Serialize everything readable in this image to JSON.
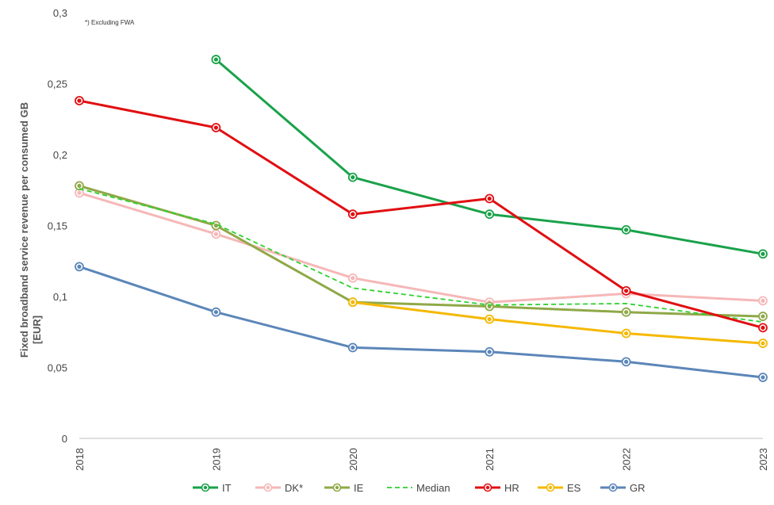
{
  "chart_data": {
    "type": "line",
    "note": "*) Excluding FWA",
    "ylabel_line1": "Fixed broadband service revenue per consumed GB",
    "ylabel_line2": "[EUR]",
    "x": [
      "2018",
      "2019",
      "2020",
      "2021",
      "2022",
      "2023"
    ],
    "ylim": [
      0,
      0.3
    ],
    "yticks": [
      {
        "value": 0,
        "label": "0"
      },
      {
        "value": 0.05,
        "label": "0,05"
      },
      {
        "value": 0.1,
        "label": "0,1"
      },
      {
        "value": 0.15,
        "label": "0,15"
      },
      {
        "value": 0.2,
        "label": "0,2"
      },
      {
        "value": 0.25,
        "label": "0,25"
      },
      {
        "value": 0.3,
        "label": "0,3"
      }
    ],
    "grid": false,
    "legend_position": "bottom",
    "series": [
      {
        "name": "IT",
        "color": "#1aa24a",
        "marker": true,
        "dashed": false,
        "values": [
          null,
          0.267,
          0.184,
          0.158,
          0.147,
          0.13
        ]
      },
      {
        "name": "DK*",
        "color": "#f6b7b7",
        "marker": true,
        "dashed": false,
        "values": [
          0.173,
          0.144,
          0.113,
          0.096,
          0.102,
          0.097
        ]
      },
      {
        "name": "IE",
        "color": "#8fa848",
        "marker": true,
        "dashed": false,
        "values": [
          0.178,
          0.15,
          0.096,
          0.093,
          0.089,
          0.086
        ]
      },
      {
        "name": "Median",
        "color": "#2ed12e",
        "marker": false,
        "dashed": true,
        "values": [
          0.176,
          0.151,
          0.106,
          0.094,
          0.095,
          0.082
        ]
      },
      {
        "name": "HR",
        "color": "#e10f12",
        "marker": true,
        "dashed": false,
        "values": [
          0.238,
          0.219,
          0.158,
          0.169,
          0.104,
          0.078
        ]
      },
      {
        "name": "ES",
        "color": "#f5b800",
        "marker": true,
        "dashed": false,
        "values": [
          null,
          null,
          0.096,
          0.084,
          0.074,
          0.067
        ]
      },
      {
        "name": "GR",
        "color": "#5b86b9",
        "marker": true,
        "dashed": false,
        "values": [
          0.121,
          0.089,
          0.064,
          0.061,
          0.054,
          0.043
        ]
      }
    ]
  }
}
